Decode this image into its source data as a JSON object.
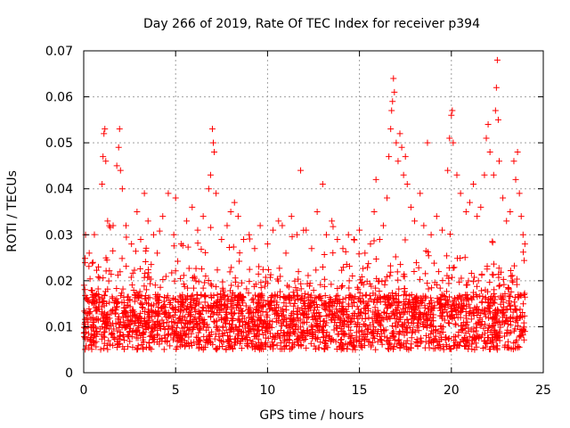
{
  "chart_data": {
    "type": "scatter",
    "title": "Day 266 of 2019, Rate Of TEC Index for receiver p394",
    "xlabel": "GPS time / hours",
    "ylabel": "ROTI / TECUs",
    "xlim": [
      0,
      25
    ],
    "ylim": [
      0,
      0.07
    ],
    "xticks": [
      0,
      5,
      10,
      15,
      20,
      25
    ],
    "xtick_labels": [
      "0",
      "5",
      "10",
      "15",
      "20",
      "25"
    ],
    "yticks": [
      0,
      0.01,
      0.02,
      0.03,
      0.04,
      0.05,
      0.06,
      0.07
    ],
    "ytick_labels": [
      "0",
      "0.01",
      "0.02",
      "0.03",
      "0.04",
      "0.05",
      "0.06",
      "0.07"
    ],
    "grid": true,
    "marker": "+",
    "color": "#ff0000",
    "series": [
      {
        "name": "ROTI",
        "points": [
          [
            0.1,
            0.03
          ],
          [
            0.3,
            0.026
          ],
          [
            0.5,
            0.024
          ],
          [
            0.8,
            0.023
          ],
          [
            1.0,
            0.041
          ],
          [
            1.05,
            0.047
          ],
          [
            1.1,
            0.052
          ],
          [
            1.15,
            0.053
          ],
          [
            1.2,
            0.046
          ],
          [
            1.3,
            0.033
          ],
          [
            1.6,
            0.032
          ],
          [
            1.8,
            0.045
          ],
          [
            1.9,
            0.049
          ],
          [
            1.95,
            0.053
          ],
          [
            2.0,
            0.044
          ],
          [
            2.1,
            0.04
          ],
          [
            2.3,
            0.032
          ],
          [
            2.6,
            0.028
          ],
          [
            2.9,
            0.035
          ],
          [
            3.1,
            0.029
          ],
          [
            3.3,
            0.039
          ],
          [
            3.5,
            0.033
          ],
          [
            3.8,
            0.03
          ],
          [
            4.0,
            0.026
          ],
          [
            4.3,
            0.034
          ],
          [
            4.6,
            0.039
          ],
          [
            4.9,
            0.03
          ],
          [
            5.0,
            0.038
          ],
          [
            5.3,
            0.028
          ],
          [
            5.6,
            0.033
          ],
          [
            5.9,
            0.036
          ],
          [
            6.2,
            0.031
          ],
          [
            6.5,
            0.034
          ],
          [
            6.8,
            0.04
          ],
          [
            6.9,
            0.043
          ],
          [
            7.0,
            0.053
          ],
          [
            7.05,
            0.05
          ],
          [
            7.1,
            0.048
          ],
          [
            7.2,
            0.039
          ],
          [
            7.5,
            0.029
          ],
          [
            7.8,
            0.032
          ],
          [
            8.0,
            0.035
          ],
          [
            8.2,
            0.037
          ],
          [
            8.4,
            0.034
          ],
          [
            8.7,
            0.029
          ],
          [
            9.0,
            0.03
          ],
          [
            9.3,
            0.027
          ],
          [
            9.6,
            0.032
          ],
          [
            10.0,
            0.028
          ],
          [
            10.3,
            0.031
          ],
          [
            10.6,
            0.033
          ],
          [
            10.8,
            0.032
          ],
          [
            11.0,
            0.026
          ],
          [
            11.3,
            0.034
          ],
          [
            11.6,
            0.03
          ],
          [
            11.8,
            0.044
          ],
          [
            12.1,
            0.031
          ],
          [
            12.4,
            0.027
          ],
          [
            12.7,
            0.035
          ],
          [
            13.0,
            0.041
          ],
          [
            13.2,
            0.03
          ],
          [
            13.5,
            0.033
          ],
          [
            13.8,
            0.029
          ],
          [
            14.1,
            0.027
          ],
          [
            14.4,
            0.03
          ],
          [
            14.7,
            0.029
          ],
          [
            15.0,
            0.031
          ],
          [
            15.3,
            0.026
          ],
          [
            15.6,
            0.028
          ],
          [
            15.8,
            0.035
          ],
          [
            15.9,
            0.042
          ],
          [
            16.1,
            0.029
          ],
          [
            16.3,
            0.032
          ],
          [
            16.5,
            0.038
          ],
          [
            16.6,
            0.047
          ],
          [
            16.7,
            0.053
          ],
          [
            16.75,
            0.057
          ],
          [
            16.8,
            0.059
          ],
          [
            16.85,
            0.064
          ],
          [
            16.9,
            0.061
          ],
          [
            17.0,
            0.05
          ],
          [
            17.1,
            0.046
          ],
          [
            17.2,
            0.052
          ],
          [
            17.3,
            0.049
          ],
          [
            17.4,
            0.043
          ],
          [
            17.5,
            0.047
          ],
          [
            17.6,
            0.041
          ],
          [
            17.8,
            0.036
          ],
          [
            18.0,
            0.033
          ],
          [
            18.3,
            0.039
          ],
          [
            18.5,
            0.032
          ],
          [
            18.7,
            0.05
          ],
          [
            18.9,
            0.03
          ],
          [
            19.2,
            0.034
          ],
          [
            19.5,
            0.031
          ],
          [
            19.8,
            0.044
          ],
          [
            19.9,
            0.051
          ],
          [
            20.0,
            0.056
          ],
          [
            20.05,
            0.057
          ],
          [
            20.1,
            0.05
          ],
          [
            20.3,
            0.043
          ],
          [
            20.5,
            0.039
          ],
          [
            20.8,
            0.035
          ],
          [
            21.0,
            0.037
          ],
          [
            21.2,
            0.041
          ],
          [
            21.4,
            0.034
          ],
          [
            21.6,
            0.036
          ],
          [
            21.8,
            0.043
          ],
          [
            21.9,
            0.051
          ],
          [
            22.0,
            0.054
          ],
          [
            22.1,
            0.048
          ],
          [
            22.3,
            0.043
          ],
          [
            22.4,
            0.057
          ],
          [
            22.45,
            0.062
          ],
          [
            22.5,
            0.068
          ],
          [
            22.55,
            0.055
          ],
          [
            22.6,
            0.046
          ],
          [
            22.8,
            0.038
          ],
          [
            23.0,
            0.033
          ],
          [
            23.2,
            0.035
          ],
          [
            23.4,
            0.046
          ],
          [
            23.5,
            0.042
          ],
          [
            23.6,
            0.048
          ],
          [
            23.7,
            0.039
          ],
          [
            23.8,
            0.034
          ],
          [
            23.9,
            0.03
          ],
          [
            24.0,
            0.028
          ],
          [
            0.5,
            0.012
          ],
          [
            1.0,
            0.01
          ],
          [
            1.5,
            0.013
          ],
          [
            2.0,
            0.011
          ],
          [
            2.5,
            0.009
          ],
          [
            3.0,
            0.012
          ],
          [
            3.5,
            0.01
          ],
          [
            4.0,
            0.011
          ],
          [
            4.5,
            0.013
          ],
          [
            5.0,
            0.009
          ],
          [
            5.5,
            0.012
          ],
          [
            6.0,
            0.01
          ],
          [
            6.5,
            0.011
          ],
          [
            7.0,
            0.014
          ],
          [
            7.5,
            0.012
          ],
          [
            8.0,
            0.013
          ],
          [
            8.5,
            0.011
          ],
          [
            9.0,
            0.01
          ],
          [
            9.5,
            0.012
          ],
          [
            10.0,
            0.009
          ],
          [
            10.5,
            0.011
          ],
          [
            11.0,
            0.012
          ],
          [
            11.5,
            0.01
          ],
          [
            12.0,
            0.011
          ],
          [
            12.5,
            0.013
          ],
          [
            13.0,
            0.01
          ],
          [
            13.5,
            0.012
          ],
          [
            14.0,
            0.009
          ],
          [
            14.5,
            0.011
          ],
          [
            15.0,
            0.01
          ],
          [
            15.5,
            0.012
          ],
          [
            16.0,
            0.011
          ],
          [
            16.5,
            0.014
          ],
          [
            17.0,
            0.016
          ],
          [
            17.5,
            0.015
          ],
          [
            18.0,
            0.012
          ],
          [
            18.5,
            0.011
          ],
          [
            19.0,
            0.012
          ],
          [
            19.5,
            0.013
          ],
          [
            20.0,
            0.014
          ],
          [
            20.5,
            0.012
          ],
          [
            21.0,
            0.013
          ],
          [
            21.5,
            0.011
          ],
          [
            22.0,
            0.014
          ],
          [
            22.5,
            0.013
          ],
          [
            23.0,
            0.012
          ],
          [
            23.5,
            0.011
          ],
          [
            24.0,
            0.009
          ]
        ]
      }
    ]
  }
}
